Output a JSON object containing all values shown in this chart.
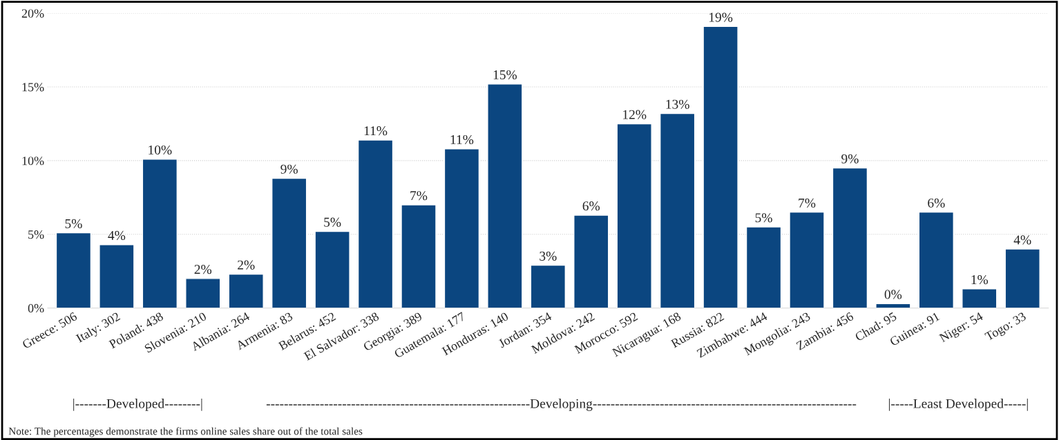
{
  "chart_data": {
    "type": "bar",
    "categories": [
      "Greece: 506",
      "Italy: 302",
      "Poland: 438",
      "Slovenia: 210",
      "Albania: 264",
      "Armenia: 83",
      "Belarus: 452",
      "El Salvador: 338",
      "Georgia: 389",
      "Guatemala: 177",
      "Honduras: 140",
      "Jordan: 354",
      "Moldova: 242",
      "Morocco: 592",
      "Nicaragua: 168",
      "Russia: 822",
      "Zimbabwe: 444",
      "Mongolia: 243",
      "Zambia: 456",
      "Chad: 95",
      "Guinea: 91",
      "Niger: 54",
      "Togo: 33"
    ],
    "values": [
      5.1,
      4.3,
      10.1,
      2.0,
      2.3,
      8.8,
      5.2,
      11.4,
      7.0,
      10.8,
      15.2,
      2.9,
      6.3,
      12.5,
      13.2,
      19.1,
      5.5,
      6.5,
      9.5,
      0.3,
      6.5,
      1.3,
      4.0
    ],
    "value_labels": [
      "5%",
      "4%",
      "10%",
      "2%",
      "2%",
      "9%",
      "5%",
      "11%",
      "7%",
      "11%",
      "15%",
      "3%",
      "6%",
      "12%",
      "13%",
      "19%",
      "5%",
      "7%",
      "9%",
      "0%",
      "6%",
      "1%",
      "4%"
    ],
    "color": "#0b4680",
    "ylim": [
      0,
      20
    ],
    "yticks": [
      {
        "value": 0,
        "label": "0%"
      },
      {
        "value": 5,
        "label": "5%"
      },
      {
        "value": 10,
        "label": "10%"
      },
      {
        "value": 15,
        "label": "15%"
      },
      {
        "value": 20,
        "label": "20%"
      }
    ],
    "grid": "y",
    "annotations": [
      "|-------Developed--------|",
      "-----------------------------------------------------------Developing-----------------------------------------------------------",
      "|-----Least Developed-----|",
      "Note: The percentages demonstrate the firms online sales share out of the total sales"
    ]
  }
}
